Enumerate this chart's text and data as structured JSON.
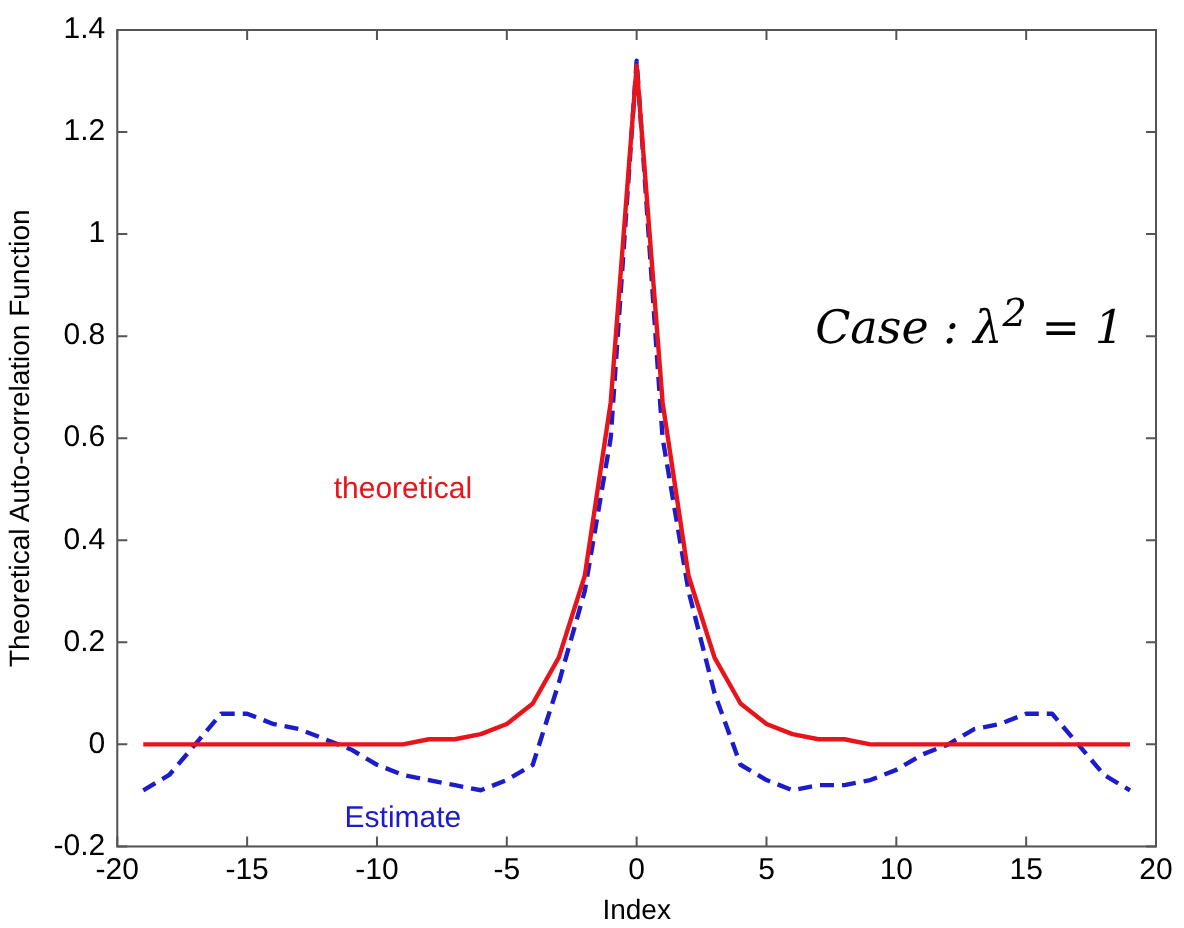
{
  "chart_data": {
    "type": "line",
    "xlabel": "Index",
    "ylabel": "Theoretical Auto-correlation Function",
    "annotations": [
      "Case : λ$^{2}$ = 1"
    ],
    "x": [
      -19,
      -18,
      -17,
      -16,
      -15,
      -14,
      -13,
      -12,
      -11,
      -10,
      -9,
      -8,
      -7,
      -6,
      -5,
      -4,
      -3,
      -2,
      -1,
      0,
      1,
      2,
      3,
      4,
      5,
      6,
      7,
      8,
      9,
      10,
      11,
      12,
      13,
      14,
      15,
      16,
      17,
      18,
      19
    ],
    "series": [
      {
        "name": "theoretical",
        "color": "#e8141c",
        "line_style": "solid",
        "values": [
          0,
          0,
          0,
          0,
          0,
          0,
          0,
          0,
          0,
          0,
          0,
          0.01,
          0.01,
          0.02,
          0.04,
          0.08,
          0.17,
          0.33,
          0.67,
          1.33,
          0.67,
          0.33,
          0.17,
          0.08,
          0.04,
          0.02,
          0.01,
          0.01,
          0,
          0,
          0,
          0,
          0,
          0,
          0,
          0,
          0,
          0,
          0
        ]
      },
      {
        "name": "Estimate",
        "color": "#1c1ccc",
        "line_style": "dashed",
        "values": [
          -0.09,
          -0.06,
          0,
          0.06,
          0.06,
          0.04,
          0.03,
          0.01,
          -0.01,
          -0.04,
          -0.06,
          -0.07,
          -0.08,
          -0.09,
          -0.07,
          -0.04,
          0.12,
          0.3,
          0.6,
          1.34,
          0.6,
          0.3,
          0.1,
          -0.04,
          -0.07,
          -0.09,
          -0.08,
          -0.08,
          -0.07,
          -0.05,
          -0.02,
          0,
          0.03,
          0.04,
          0.06,
          0.06,
          0,
          -0.06,
          -0.09
        ]
      }
    ],
    "xlim": [
      -20,
      20
    ],
    "xticks": [
      -20,
      -15,
      -10,
      -5,
      0,
      5,
      10,
      15,
      20
    ],
    "ylim": [
      -0.2,
      1.4
    ],
    "yticks": [
      -0.2,
      0,
      0.2,
      0.4,
      0.6,
      0.8,
      1,
      1.2,
      1.4
    ],
    "grid": false,
    "legend": false,
    "marker": "none"
  }
}
